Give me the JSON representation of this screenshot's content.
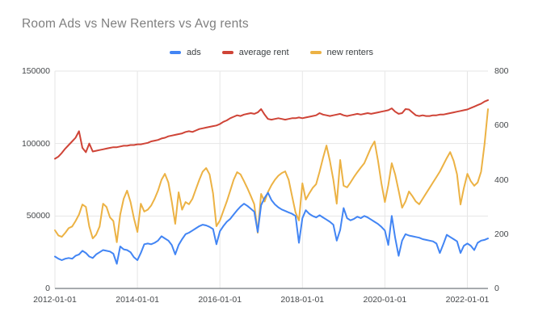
{
  "title": "Room Ads vs New Renters vs Avg rents",
  "legend": {
    "items": [
      {
        "label": "ads",
        "color": "#4285f4"
      },
      {
        "label": "average rent",
        "color": "#cf4437"
      },
      {
        "label": "new renters",
        "color": "#ecb244"
      }
    ]
  },
  "chart_data": {
    "type": "line",
    "title": "Room Ads vs New Renters vs Avg rents",
    "x_monthly": {
      "start": "2012-01",
      "end": "2022-07",
      "points": 127
    },
    "x_tick_labels": [
      "2012-01-01",
      "2014-01-01",
      "2016-01-01",
      "2018-01-01",
      "2020-01-01",
      "2022-01-01"
    ],
    "x_tick_month_index": [
      0,
      24,
      48,
      72,
      96,
      120
    ],
    "left_axis": {
      "range": [
        0,
        150000
      ],
      "tick_values": [
        0,
        50000,
        100000,
        150000
      ],
      "tick_labels": [
        "0",
        "50000",
        "100000",
        "150000"
      ]
    },
    "right_axis": {
      "range": [
        0,
        800
      ],
      "tick_values": [
        0,
        200,
        400,
        600,
        800
      ],
      "tick_labels": [
        "0",
        "200",
        "400",
        "600",
        "800"
      ]
    },
    "grid": true,
    "legend_position": "top",
    "colors": {
      "grid": "#e6e6e6",
      "axis_line": "#8a8f94",
      "tick_text": "#44474a"
    },
    "series": [
      {
        "name": "ads",
        "axis": "left",
        "color": "#4285f4",
        "values": [
          22000,
          20500,
          19500,
          20500,
          21000,
          20500,
          22500,
          23500,
          26000,
          24500,
          22000,
          21000,
          23500,
          25000,
          26500,
          26000,
          25500,
          24000,
          17000,
          29000,
          27000,
          26500,
          25000,
          21500,
          19500,
          24500,
          30500,
          31000,
          30500,
          31500,
          33000,
          36000,
          34500,
          33000,
          30000,
          23500,
          30000,
          34000,
          37500,
          38500,
          40000,
          41500,
          43000,
          44000,
          43500,
          42500,
          41000,
          30500,
          39500,
          43000,
          46000,
          48000,
          51000,
          54000,
          56500,
          58500,
          57000,
          55000,
          53000,
          39000,
          57500,
          62500,
          66000,
          61000,
          58000,
          56000,
          54500,
          53500,
          52500,
          51500,
          50000,
          31500,
          48500,
          54000,
          51500,
          50000,
          49000,
          50500,
          49000,
          47500,
          46000,
          44000,
          33000,
          40500,
          55500,
          48500,
          47000,
          48000,
          49500,
          48500,
          50000,
          49000,
          47500,
          46000,
          44500,
          42500,
          40000,
          30000,
          50000,
          35000,
          22500,
          33000,
          37500,
          36500,
          36000,
          35500,
          35000,
          34000,
          33500,
          33000,
          32500,
          31000,
          24500,
          30500,
          37000,
          35500,
          34000,
          32500,
          24500,
          29500,
          31000,
          29500,
          26500,
          31500,
          33000,
          33500,
          34500
        ]
      },
      {
        "name": "average rent",
        "axis": "left",
        "color": "#cf4437",
        "values": [
          89500,
          91000,
          93500,
          96500,
          99000,
          101500,
          104000,
          108500,
          97000,
          94000,
          100000,
          94500,
          95000,
          95500,
          96000,
          96500,
          97000,
          97500,
          97500,
          98000,
          98500,
          98500,
          99000,
          99000,
          99500,
          99500,
          100000,
          100500,
          101500,
          102000,
          102500,
          103500,
          104000,
          105000,
          105500,
          106000,
          106500,
          107000,
          108000,
          108500,
          108000,
          109000,
          110000,
          110500,
          111000,
          111500,
          112000,
          112500,
          113500,
          115000,
          116000,
          117500,
          118500,
          119500,
          119000,
          120000,
          120500,
          121000,
          120500,
          121500,
          123800,
          120000,
          117000,
          116500,
          117000,
          117500,
          117000,
          116500,
          117000,
          117500,
          117500,
          118000,
          117500,
          118000,
          118500,
          119000,
          119500,
          121000,
          120000,
          119500,
          119000,
          119500,
          120000,
          120500,
          119500,
          119000,
          119500,
          120000,
          120500,
          120000,
          120500,
          121000,
          120500,
          121000,
          121500,
          122000,
          122500,
          123000,
          124300,
          122000,
          120500,
          121000,
          123800,
          123500,
          121500,
          119500,
          119000,
          119500,
          119000,
          119000,
          119500,
          119500,
          120000,
          120000,
          120500,
          121000,
          121500,
          122000,
          122500,
          123000,
          123500,
          124500,
          125500,
          126500,
          127500,
          129000,
          130000
        ]
      },
      {
        "name": "new renters",
        "axis": "right",
        "color": "#ecb244",
        "values": [
          214,
          195,
          190,
          205,
          222,
          228,
          248,
          272,
          309,
          300,
          228,
          184,
          198,
          228,
          312,
          300,
          262,
          248,
          170,
          272,
          330,
          360,
          318,
          258,
          208,
          312,
          283,
          290,
          305,
          330,
          360,
          400,
          422,
          390,
          320,
          238,
          354,
          290,
          318,
          310,
          330,
          365,
          400,
          430,
          443,
          420,
          350,
          229,
          250,
          285,
          320,
          360,
          400,
          428,
          420,
          395,
          369,
          340,
          310,
          205,
          348,
          320,
          355,
          380,
          400,
          415,
          425,
          431,
          400,
          340,
          280,
          250,
          387,
          327,
          350,
          370,
          384,
          430,
          480,
          526,
          470,
          400,
          312,
          473,
          378,
          372,
          390,
          410,
          428,
          445,
          461,
          490,
          520,
          541,
          470,
          387,
          318,
          380,
          461,
          420,
          360,
          297,
          320,
          357,
          340,
          320,
          310,
          330,
          350,
          370,
          390,
          410,
          430,
          455,
          480,
          502,
          470,
          420,
          309,
          370,
          422,
          395,
          378,
          390,
          430,
          530,
          660
        ]
      }
    ]
  }
}
